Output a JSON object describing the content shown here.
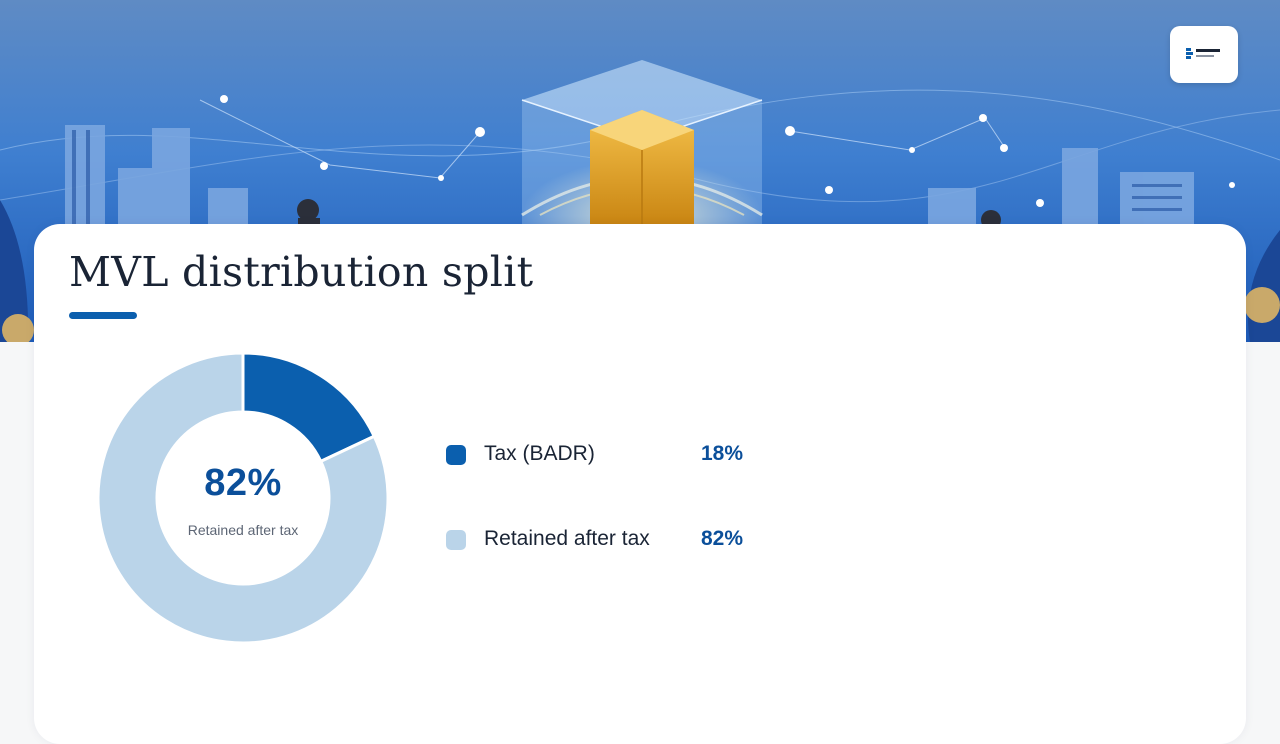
{
  "slide": {
    "title": "MVL distribution split"
  },
  "colors": {
    "accent": "#0b5fae",
    "series_tax": "#0b5fae",
    "series_retained": "#bad4e9",
    "value_text": "#0b4f9a"
  },
  "chart_data": {
    "type": "pie",
    "categories": [
      "Tax (BADR)",
      "Retained after tax"
    ],
    "values": [
      18,
      82
    ],
    "value_labels": [
      "18%",
      "82%"
    ],
    "center_value": "82%",
    "center_caption": "Retained after tax",
    "legend_placement": "right"
  }
}
